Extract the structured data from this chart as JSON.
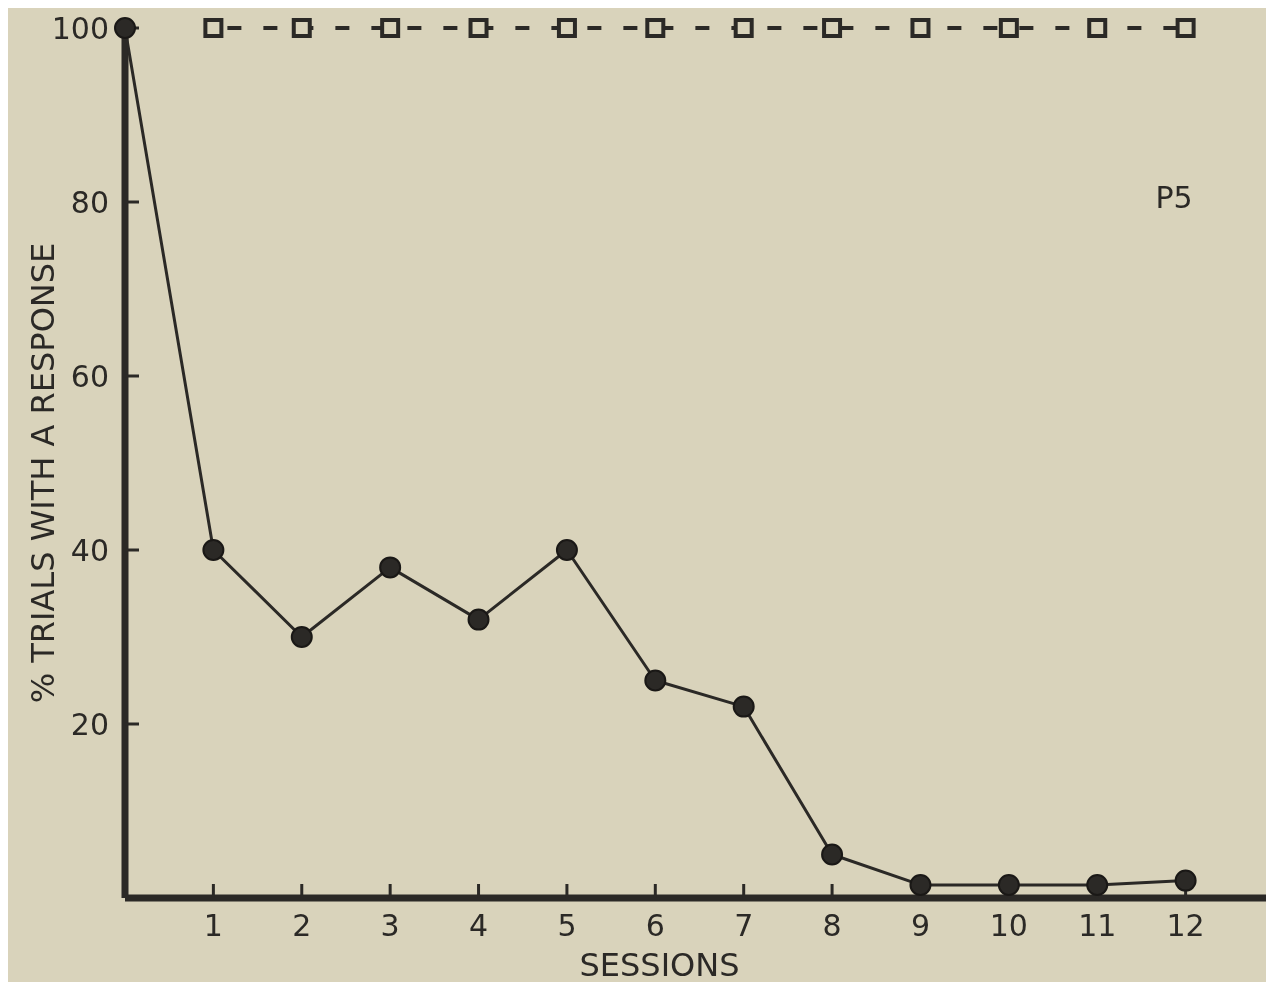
{
  "chart_data": {
    "type": "line",
    "xlabel": "SESSIONS",
    "ylabel": "% TRIALS WITH A RESPONSE",
    "annotations": [
      "P5"
    ],
    "x": [
      0,
      1,
      2,
      3,
      4,
      5,
      6,
      7,
      8,
      9,
      10,
      11,
      12
    ],
    "xlim": [
      0,
      13
    ],
    "xticks": [
      1,
      2,
      3,
      4,
      5,
      6,
      7,
      8,
      9,
      10,
      11,
      12
    ],
    "ylim": [
      0,
      100
    ],
    "yticks": [
      20,
      40,
      60,
      80,
      100
    ],
    "series": [
      {
        "color": "#2b2926",
        "marker": "square",
        "line_style": "dashed",
        "values": [
          null,
          100,
          100,
          100,
          100,
          100,
          100,
          100,
          100,
          100,
          100,
          100,
          100
        ]
      },
      {
        "color": "#2b2926",
        "marker": "circle",
        "line_style": "solid",
        "values": [
          100,
          40,
          30,
          38,
          32,
          40,
          25,
          22,
          5,
          1.5,
          1.5,
          1.5,
          2
        ]
      }
    ]
  }
}
